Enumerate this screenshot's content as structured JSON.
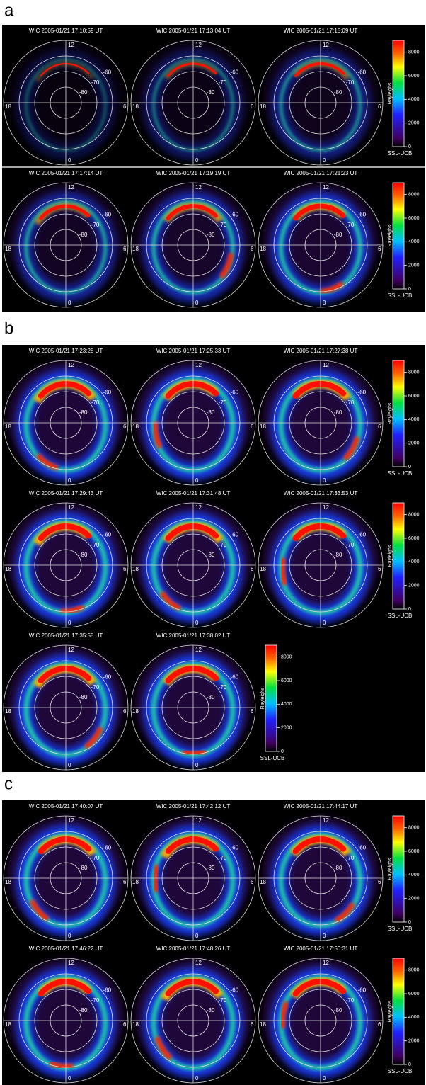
{
  "panels": [
    {
      "label": "a",
      "rows": [
        [
          "WIC 2005-01/21 17:10:59 UT",
          "WIC 2005-01/21 17:13:04 UT",
          "WIC 2005-01/21 17:15:09 UT"
        ],
        [
          "WIC 2005-01/21 17:17:14 UT",
          "WIC 2005-01/21 17:19:19 UT",
          "WIC 2005-01/21 17:21:23 UT"
        ]
      ]
    },
    {
      "label": "b",
      "rows": [
        [
          "WIC 2005-01/21 17:23:28 UT",
          "WIC 2005-01/21 17:25:33 UT",
          "WIC 2005-01/21 17:27:38 UT"
        ],
        [
          "WIC 2005-01/21 17:29:43 UT",
          "WIC 2005-01/21 17:31:48 UT",
          "WIC 2005-01/21 17:33:53 UT"
        ],
        [
          "WIC 2005-01/21 17:35:58 UT",
          "WIC 2005-01/21 17:38:02 UT"
        ]
      ]
    },
    {
      "label": "c",
      "rows": [
        [
          "WIC 2005-01/21 17:40:07 UT",
          "WIC 2005-01/21 17:42:12 UT",
          "WIC 2005-01/21 17:44:17 UT"
        ],
        [
          "WIC 2005-01/21 17:46:22 UT",
          "WIC 2005-01/21 17:48:26 UT",
          "WIC 2005-01/21 17:50:31 UT"
        ]
      ]
    }
  ],
  "polar_labels": {
    "top": "12",
    "left": "18",
    "right": "6",
    "bottom": "0",
    "rings": [
      "-60",
      "-70",
      "-80"
    ]
  },
  "colorbar": {
    "label": "Rayleighs",
    "credit": "SSL-UCB",
    "lim": [
      0,
      9000
    ],
    "ticks": [
      0,
      2000,
      4000,
      6000,
      8000
    ]
  }
}
